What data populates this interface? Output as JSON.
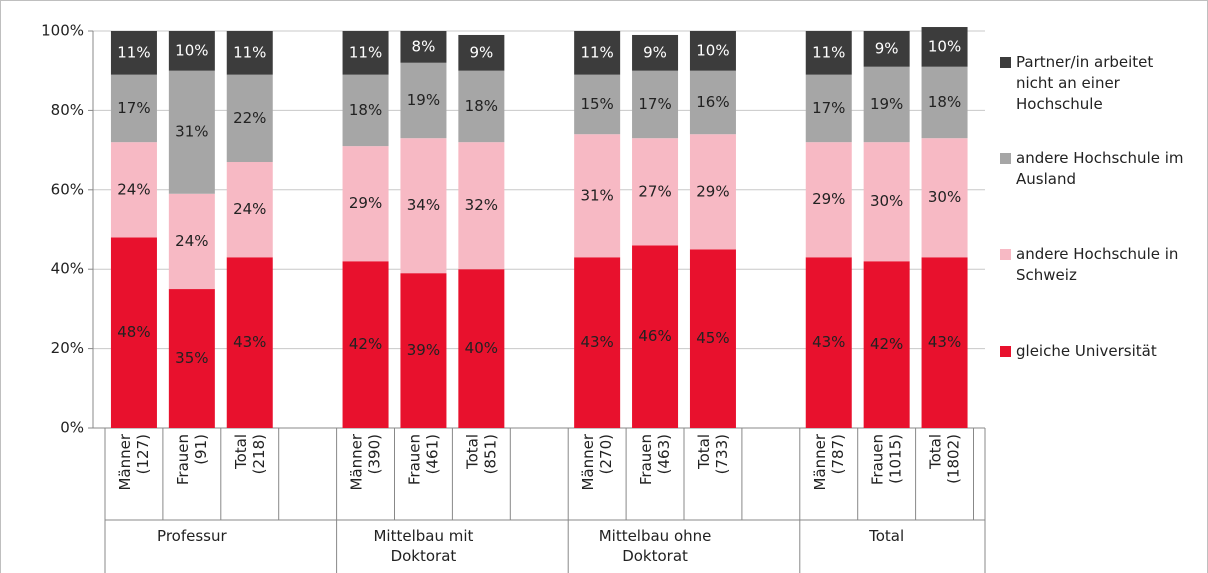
{
  "chart_data": {
    "type": "stacked_bar",
    "categories": [
      "Männer (127)",
      "Frauen (91)",
      "Total (218)",
      null,
      "Männer (390)",
      "Frauen (461)",
      "Total (851)",
      null,
      "Männer (270)",
      "Frauen (463)",
      "Total (733)",
      null,
      "Männer (787)",
      "Frauen (1015)",
      "Total (1802)"
    ],
    "groups": [
      "Professur",
      "Mittelbau mit Doktorat",
      "Mittelbau ohne Doktorat",
      "Total"
    ],
    "series": [
      {
        "name": "gleiche Universität",
        "color": "#e8112d",
        "values": [
          48,
          35,
          43,
          null,
          42,
          39,
          40,
          null,
          43,
          46,
          45,
          null,
          43,
          42,
          43
        ],
        "value_labels": [
          "48%",
          "35%",
          "43%",
          null,
          "42%",
          "39%",
          "40%",
          null,
          "43%",
          "46%",
          "45%",
          null,
          "43%",
          "42%",
          "43%"
        ]
      },
      {
        "name": "andere Hochschule in Schweiz",
        "color": "#f7b9c4",
        "values": [
          24,
          24,
          24,
          null,
          29,
          34,
          32,
          null,
          31,
          27,
          29,
          null,
          29,
          30,
          30
        ],
        "value_labels": [
          "24%",
          "24%",
          "24%",
          null,
          "29%",
          "34%",
          "32%",
          null,
          "31%",
          "27%",
          "29%",
          null,
          "29%",
          "30%",
          "30%"
        ]
      },
      {
        "name": "andere Hochschule im Ausland",
        "color": "#a6a6a6",
        "values": [
          17,
          31,
          22,
          null,
          18,
          19,
          18,
          null,
          15,
          17,
          16,
          null,
          17,
          19,
          18
        ],
        "value_labels": [
          "17%",
          "31%",
          "22%",
          null,
          "18%",
          "19%",
          "18%",
          null,
          "15%",
          "17%",
          "16%",
          null,
          "17%",
          "19%",
          "18%"
        ]
      },
      {
        "name": "Partner/in arbeitet nicht an einer Hochschule",
        "color": "#3c3c3c",
        "values": [
          11,
          10,
          11,
          null,
          11,
          8,
          9,
          null,
          11,
          9,
          10,
          null,
          11,
          9,
          10
        ],
        "value_labels": [
          "11%",
          "10%",
          "11%",
          null,
          "11%",
          "8%",
          "9%",
          null,
          "11%",
          "9%",
          "10%",
          null,
          "11%",
          "9%",
          "10%"
        ]
      }
    ],
    "ylim": [
      0,
      100
    ],
    "yticks": [
      {
        "value": 0,
        "label": "0%"
      },
      {
        "value": 20,
        "label": "20%"
      },
      {
        "value": 40,
        "label": "40%"
      },
      {
        "value": 60,
        "label": "60%"
      },
      {
        "value": 80,
        "label": "80%"
      },
      {
        "value": 100,
        "label": "100%"
      }
    ],
    "grid": true
  }
}
